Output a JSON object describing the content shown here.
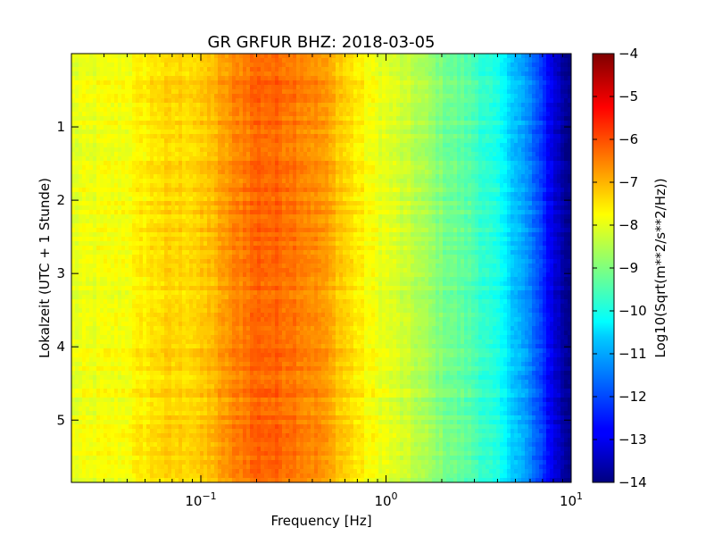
{
  "chart_data": {
    "type": "heatmap",
    "title": "GR GRFUR BHZ: 2018-03-05",
    "xlabel": "Frequency [Hz]",
    "ylabel": "Lokalzeit (UTC + 1 Stunde)",
    "x_scale": "log",
    "xlim": [
      0.02,
      10
    ],
    "ylim": [
      0,
      5.85
    ],
    "y_inverted": true,
    "x_ticks": [
      {
        "value": 0.1,
        "base": "10",
        "exp": "−1"
      },
      {
        "value": 1,
        "base": "10",
        "exp": "0"
      },
      {
        "value": 10,
        "base": "10",
        "exp": "1"
      }
    ],
    "y_ticks": [
      {
        "value": 1,
        "label": "1"
      },
      {
        "value": 2,
        "label": "2"
      },
      {
        "value": 3,
        "label": "3"
      },
      {
        "value": 4,
        "label": "4"
      },
      {
        "value": 5,
        "label": "5"
      }
    ],
    "colorbar": {
      "label": "Log10(Sqrt(m**2/s**2/Hz))",
      "range": [
        -14,
        -4
      ],
      "colormap": "jet",
      "ticks": [
        {
          "value": -4,
          "label": "−4"
        },
        {
          "value": -5,
          "label": "−5"
        },
        {
          "value": -6,
          "label": "−6"
        },
        {
          "value": -7,
          "label": "−7"
        },
        {
          "value": -8,
          "label": "−8"
        },
        {
          "value": -9,
          "label": "−9"
        },
        {
          "value": -10,
          "label": "−10"
        },
        {
          "value": -11,
          "label": "−11"
        },
        {
          "value": -12,
          "label": "−12"
        },
        {
          "value": -13,
          "label": "−13"
        },
        {
          "value": -14,
          "label": "−14"
        }
      ]
    },
    "spectrum_profile": {
      "frequency_hz": [
        0.02,
        0.04,
        0.06,
        0.1,
        0.12,
        0.15,
        0.2,
        0.3,
        0.45,
        0.6,
        0.8,
        1.0,
        1.5,
        2.0,
        3.0,
        4.0,
        5.0,
        6.0,
        7.0,
        8.0,
        9.0,
        10.0
      ],
      "log10_amplitude": [
        -8.0,
        -7.8,
        -7.4,
        -7.3,
        -7.0,
        -6.6,
        -6.2,
        -6.3,
        -6.7,
        -7.3,
        -7.8,
        -8.0,
        -8.5,
        -9.0,
        -9.5,
        -10.1,
        -10.8,
        -11.5,
        -12.3,
        -13.0,
        -13.6,
        -14.0
      ]
    },
    "grid": false
  }
}
